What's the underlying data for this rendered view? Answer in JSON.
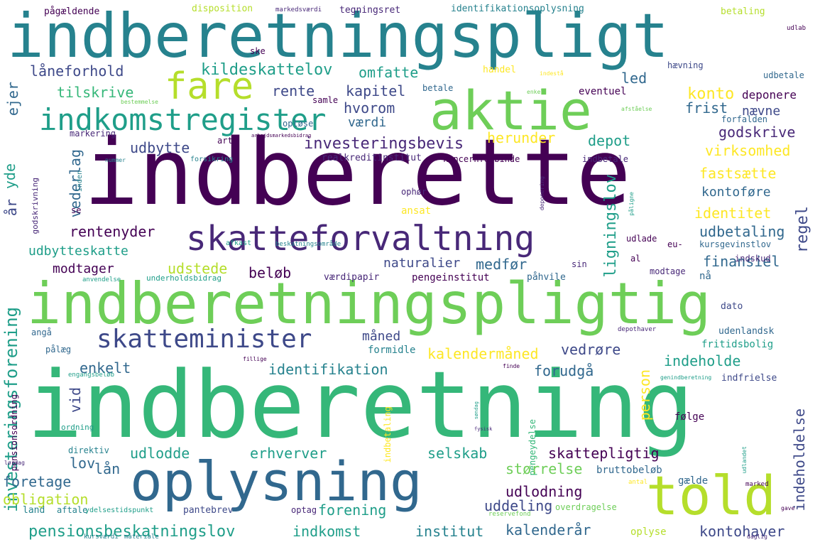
{
  "palette": {
    "dark_purple": "#440154",
    "purple": "#482878",
    "indigo": "#3e4989",
    "blue": "#31688e",
    "teal_blue": "#26828e",
    "teal": "#1f9e89",
    "green_teal": "#35b779",
    "green": "#6ece58",
    "lime": "#b5de2b",
    "yellow": "#fde725"
  },
  "words": {
    "w1": "indberetningspligt",
    "w2": "indberette",
    "w3": "indberetning",
    "w4": "indberetningspligtig",
    "w5": "aktie",
    "w6": "oplysning",
    "w7": "told",
    "w8": "skatteforvaltning",
    "w9": "indkomstregister",
    "w10": "fare",
    "w11": "skatteminister",
    "w12": "pensionsbeskatningslov",
    "w13": "investeringsforening",
    "w14": "kildeskattelov",
    "w15": "omfatte",
    "w16": "låneforhold",
    "w17": "tilskrive",
    "w18": "rente",
    "w19": "kapitel",
    "w20": "hvorom",
    "w21": "værdi",
    "w22": "konto",
    "w23": "frist",
    "w24": "nævne",
    "w25": "led",
    "w26": "deponere",
    "w27": "eventuel",
    "w28": "godskrive",
    "w29": "virksomhed",
    "w30": "herunder",
    "w31": "depot",
    "w32": "ligningslov",
    "w33": "fastsætte",
    "w34": "regel",
    "w35": "kontoføre",
    "w36": "identitet",
    "w37": "udbetaling",
    "w38": "investeringsbevis",
    "w39": "udbytte",
    "w40": "vederlag",
    "w41": "yde",
    "w42": "realkreditinstitut",
    "w43": "koncernforbinde",
    "w44": "ejer",
    "w45": "rentenyder",
    "w46": "udbytteskatte",
    "w47": "modtager",
    "w48": "udstede",
    "w49": "beløb",
    "w50": "naturalier",
    "w51": "medfør",
    "w52": "pengeinstitut",
    "w53": "værdipapir",
    "w54": "påhvile",
    "w55": "finansiel",
    "w56": "modtage",
    "w57": "nå",
    "w58": "kursgevinstlov",
    "w59": "eu-",
    "w60": "indskud",
    "w61": "indbetale",
    "w62": "forfalden",
    "w63": "måned",
    "w64": "formidle",
    "w65": "kalendermåned",
    "w66": "vedrøre",
    "w67": "identifikation",
    "w68": "enkelt",
    "w69": "forudgå",
    "w70": "person",
    "w71": "indeholde",
    "w72": "indeholdelse",
    "w73": "fritidsbolig",
    "w74": "udenlandsk",
    "w75": "dato",
    "w76": "indfrielse",
    "w77": "vid",
    "w78": "udlodde",
    "w79": "lov",
    "w80": "lån",
    "w81": "erhverver",
    "w82": "selskab",
    "w83": "størrelse",
    "w84": "skattepligtig",
    "w85": "bruttobeløb",
    "w86": "gælde",
    "w87": "foretage",
    "w88": "obligation",
    "w89": "land",
    "w90": "aftale",
    "w91": "pantebrev",
    "w92": "optag",
    "w93": "udlodning",
    "w94": "uddeling",
    "w95": "forening",
    "w96": "overdragelse",
    "w97": "indkomst",
    "w98": "institut",
    "w99": "kalenderår",
    "w100": "kontohaver",
    "w101": "oplyse",
    "w102": "direktiv",
    "w103": "pålæg",
    "w104": "angå",
    "w105": "opløse",
    "w106": "ophør",
    "w107": "ansat",
    "w108": "handel",
    "w109": "hævning",
    "w110": "udbetale",
    "w111": "betale",
    "w112": "samle",
    "w113": "ske",
    "w114": "art",
    "w115": "markering",
    "w116": "år",
    "w117": "se",
    "w118": "inden",
    "w119": "pensionsordning",
    "w120": "ordning",
    "w121": "godskrivning",
    "w122": "følge",
    "w123": "pengeydelse",
    "w124": "udlade",
    "w125": "al",
    "w126": "sin",
    "w127": "påligne",
    "w128": "pågældende",
    "w129": "disposition",
    "w130": "markedsværdi",
    "w131": "tegningsret",
    "w132": "identifikationsoplysning",
    "w133": "betaling",
    "w134": "udlab",
    "w135": "bestemmelse",
    "w136": "forsikring",
    "w137": "nummer",
    "w138": "afkast",
    "w139": "beskatningsområde",
    "w140": "underholdsbidrag",
    "w141": "anvendelse",
    "w142": "ydelsestidspunkt",
    "w143": "materiale",
    "w144": "kursværdi",
    "w145": "engangsbeløb",
    "w146": "indbetaling",
    "w147": "arbejdsmarkedsbidrag",
    "w148": "udlandet",
    "w149": "reservefond",
    "w150": "antal",
    "w151": "marked",
    "w152": "lørdag",
    "w153": "gave",
    "w154": "daglig",
    "w155": "deponering",
    "w156": "indestå",
    "w157": "fysisk",
    "w158": "genindberetning",
    "w159": "afståelse",
    "w160": "depothaver",
    "w161": "søndag",
    "w162": "finde",
    "w163": "fillige",
    "w164": "enkel"
  }
}
